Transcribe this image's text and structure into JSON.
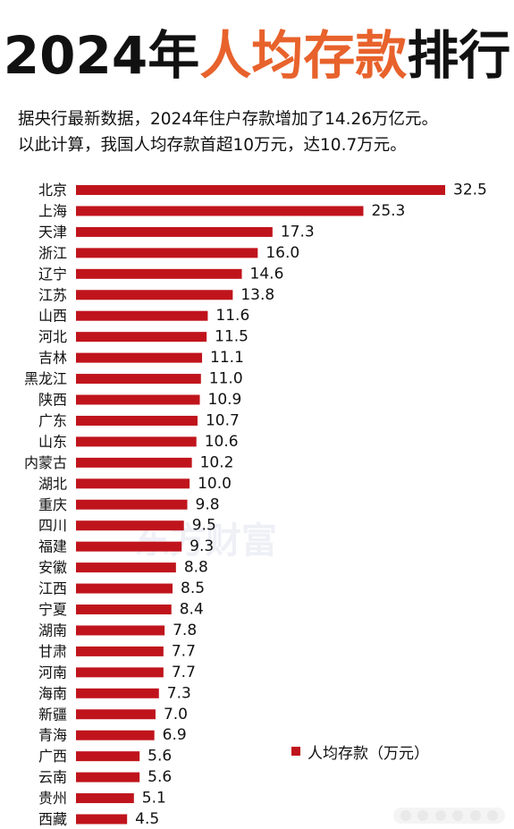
{
  "title": {
    "prefix": "2024年",
    "highlight": "人均存款",
    "suffix": "排行"
  },
  "subtitle_lines": [
    "据央行最新数据，2024年住户存款增加了14.26万亿元。",
    "以此计算，我国人均存款首超10万元，达10.7万元。"
  ],
  "watermark": "东方财富",
  "colors": {
    "bar": "#c0141c",
    "title_accent": "#e8622c",
    "title_text": "#111111"
  },
  "chart_data": {
    "type": "bar",
    "orientation": "horizontal",
    "categories": [
      "北京",
      "上海",
      "天津",
      "浙江",
      "辽宁",
      "江苏",
      "山西",
      "河北",
      "吉林",
      "黑龙江",
      "陕西",
      "广东",
      "山东",
      "内蒙古",
      "湖北",
      "重庆",
      "四川",
      "福建",
      "安徽",
      "江西",
      "宁夏",
      "湖南",
      "甘肃",
      "河南",
      "海南",
      "新疆",
      "青海",
      "广西",
      "云南",
      "贵州",
      "西藏"
    ],
    "series": [
      {
        "name": "人均存款（万元）",
        "values": [
          32.5,
          25.3,
          17.3,
          16.0,
          14.6,
          13.8,
          11.6,
          11.5,
          11.1,
          11.0,
          10.9,
          10.7,
          10.6,
          10.2,
          10.0,
          9.8,
          9.5,
          9.3,
          8.8,
          8.5,
          8.4,
          7.8,
          7.7,
          7.7,
          7.3,
          7.0,
          6.9,
          5.6,
          5.6,
          5.1,
          4.5
        ],
        "labels": [
          "32.5",
          "25.3",
          "17.3",
          "16.0",
          "14.6",
          "13.8",
          "11.6",
          "11.5",
          "11.1",
          "11.0",
          "10.9",
          "10.7",
          "10.6",
          "10.2",
          "10.0",
          "9.8",
          "9.5",
          "9.3",
          "8.8",
          "8.5",
          "8.4",
          "7.8",
          "7.7",
          "7.7",
          "7.3",
          "7.0",
          "6.9",
          "5.6",
          "5.6",
          "5.1",
          "4.5"
        ]
      }
    ],
    "legend": {
      "label": "人均存款（万元）",
      "position": "bottom-right"
    },
    "xlim": [
      0,
      32.5
    ],
    "grid": false
  }
}
